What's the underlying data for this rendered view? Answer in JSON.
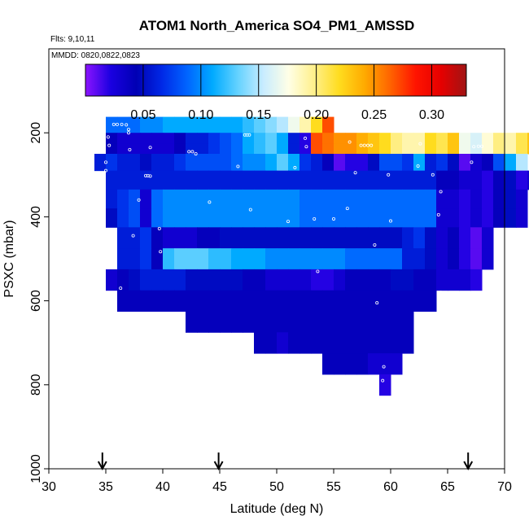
{
  "chart_data": {
    "type": "heatmap",
    "title": "ATOM1 North_America SO4_PM1_AMSSD",
    "flights_label": "Flts: 9,10,11",
    "mmdd_label": "MMDD: 0820,0822,0823",
    "xlabel": "Latitude (deg N)",
    "ylabel": "PSXC (mbar)",
    "xlim": [
      30,
      70
    ],
    "ylim": [
      1000,
      0
    ],
    "x_ticks": [
      "30",
      "35",
      "40",
      "45",
      "50",
      "55",
      "60",
      "65",
      "70"
    ],
    "y_ticks": [
      "200",
      "400",
      "600",
      "800",
      "1000"
    ],
    "colorbar": {
      "range": [
        0.0,
        0.33
      ],
      "ticks": [
        "0.05",
        "0.10",
        "0.15",
        "0.20",
        "0.25",
        "0.30"
      ],
      "colors": [
        "#8c14ff",
        "#1a00e0",
        "#0000b4",
        "#0028e6",
        "#0064ff",
        "#00aaff",
        "#64d2ff",
        "#c8ecff",
        "#ffffe6",
        "#fff08c",
        "#ffdc1e",
        "#ffaa00",
        "#ff6400",
        "#ff1400",
        "#e60000",
        "#a01414"
      ]
    },
    "arrow_latitudes": [
      34.7,
      44.9,
      66.8
    ],
    "colors": {
      "cell_fill": "#3c64e6"
    },
    "bands": [
      {
        "p_top": 162,
        "p_bot": 200,
        "x0": 35.0,
        "dx": 1.0,
        "values": [
          0.09,
          0.09,
          0.09,
          0.1,
          0.1,
          0.11,
          0.11,
          0.11,
          0.11,
          0.11,
          0.11,
          0.11,
          0.12,
          0.13,
          0.14,
          0.15,
          0.17,
          0.19,
          0.22,
          0.27
        ]
      },
      {
        "p_top": 200,
        "p_bot": 225,
        "x0": 35.0,
        "dx": 1.0,
        "values": [
          0.04,
          0.03,
          0.03,
          0.03,
          0.03,
          0.03,
          0.04,
          0.06,
          0.06,
          0.07,
          0.08,
          0.09,
          0.11,
          0.12,
          0.13,
          0.11,
          0.06,
          0.02,
          0.27,
          0.26,
          0.25,
          0.25,
          0.24,
          0.23,
          0.22,
          0.2,
          0.19,
          0.19,
          0.22,
          0.21,
          0.23,
          0.17,
          0.16,
          0.18,
          0.2,
          0.19,
          0.21,
          0.23,
          0.25,
          0.28
        ]
      },
      {
        "p_top": 225,
        "p_bot": 250,
        "x0": 35.0,
        "dx": 1.0,
        "values": [
          0.04,
          0.03,
          0.03,
          0.03,
          0.03,
          0.03,
          0.04,
          0.06,
          0.06,
          0.07,
          0.08,
          0.09,
          0.11,
          0.12,
          0.13,
          0.11,
          0.06,
          0.02,
          0.27,
          0.26,
          0.25,
          0.25,
          0.24,
          0.23,
          0.22,
          0.2,
          0.19,
          0.19,
          0.22,
          0.21,
          0.23,
          0.17,
          0.16,
          0.18,
          0.2,
          0.19,
          0.21,
          0.23,
          0.25,
          0.3
        ]
      },
      {
        "p_top": 250,
        "p_bot": 290,
        "x0": 34.0,
        "dx": 1.0,
        "values": [
          0.06,
          0.07,
          0.06,
          0.06,
          0.05,
          0.06,
          0.06,
          0.07,
          0.08,
          0.08,
          0.08,
          0.08,
          0.09,
          0.1,
          0.1,
          0.11,
          0.13,
          0.11,
          0.07,
          0.06,
          0.04,
          0.01,
          0.02,
          0.02,
          0.05,
          0.08,
          0.08,
          0.07,
          0.11,
          0.06,
          0.07,
          0.05,
          0.01,
          0.03,
          0.04,
          0.08,
          0.11,
          0.15
        ]
      },
      {
        "p_top": 290,
        "p_bot": 335,
        "x0": 35.0,
        "dx": 1.0,
        "values": [
          0.06,
          0.06,
          0.06,
          0.06,
          0.06,
          0.06,
          0.06,
          0.06,
          0.06,
          0.06,
          0.06,
          0.06,
          0.06,
          0.06,
          0.06,
          0.06,
          0.06,
          0.06,
          0.06,
          0.06,
          0.06,
          0.06,
          0.06,
          0.06,
          0.06,
          0.06,
          0.06,
          0.06,
          0.06,
          0.04,
          0.04,
          0.03,
          0.03,
          0.02,
          0.04,
          0.05,
          0.02,
          0.03
        ]
      },
      {
        "p_top": 335,
        "p_bot": 380,
        "x0": 35.0,
        "dx": 1.0,
        "values": [
          0.06,
          0.07,
          0.08,
          0.03,
          0.09,
          0.1,
          0.1,
          0.1,
          0.1,
          0.1,
          0.1,
          0.1,
          0.1,
          0.1,
          0.1,
          0.1,
          0.1,
          0.09,
          0.09,
          0.09,
          0.09,
          0.09,
          0.09,
          0.09,
          0.09,
          0.09,
          0.09,
          0.09,
          0.09,
          0.03,
          0.03,
          0.02,
          0.03,
          0.02,
          0.04,
          0.05,
          0.03
        ]
      },
      {
        "p_top": 380,
        "p_bot": 425,
        "x0": 35.0,
        "dx": 1.0,
        "values": [
          0.05,
          0.07,
          0.08,
          0.03,
          0.09,
          0.1,
          0.1,
          0.1,
          0.1,
          0.1,
          0.1,
          0.1,
          0.1,
          0.1,
          0.1,
          0.1,
          0.1,
          0.09,
          0.09,
          0.09,
          0.09,
          0.09,
          0.09,
          0.09,
          0.09,
          0.09,
          0.09,
          0.09,
          0.09,
          0.03,
          0.03,
          0.02,
          0.03,
          0.02,
          0.04,
          0.05,
          0.03
        ]
      },
      {
        "p_top": 425,
        "p_bot": 475,
        "x0": 36.0,
        "dx": 1.0,
        "values": [
          0.06,
          0.06,
          0.07,
          0.04,
          0.03,
          0.03,
          0.03,
          0.04,
          0.04,
          0.05,
          0.05,
          0.05,
          0.05,
          0.05,
          0.05,
          0.05,
          0.05,
          0.05,
          0.05,
          0.05,
          0.05,
          0.05,
          0.05,
          0.05,
          0.05,
          0.06,
          0.07,
          0.05,
          0.03,
          0.04,
          0.02,
          0.01,
          0.03
        ]
      },
      {
        "p_top": 475,
        "p_bot": 525,
        "x0": 36.0,
        "dx": 1.0,
        "values": [
          0.06,
          0.06,
          0.07,
          0.04,
          0.12,
          0.13,
          0.13,
          0.13,
          0.12,
          0.12,
          0.11,
          0.11,
          0.11,
          0.1,
          0.1,
          0.1,
          0.1,
          0.1,
          0.1,
          0.1,
          0.09,
          0.09,
          0.09,
          0.09,
          0.09,
          0.06,
          0.06,
          0.05,
          0.03,
          0.04,
          0.02,
          0.01,
          0.03
        ]
      },
      {
        "p_top": 525,
        "p_bot": 575,
        "x0": 35.0,
        "dx": 1.0,
        "values": [
          0.03,
          0.04,
          0.05,
          0.06,
          0.06,
          0.06,
          0.06,
          0.05,
          0.05,
          0.05,
          0.05,
          0.05,
          0.04,
          0.04,
          0.03,
          0.03,
          0.03,
          0.03,
          0.02,
          0.02,
          0.03,
          0.04,
          0.04,
          0.04,
          0.04,
          0.05,
          0.05,
          0.04,
          0.04,
          0.03,
          0.03,
          0.03,
          0.02
        ]
      },
      {
        "p_top": 575,
        "p_bot": 625,
        "x0": 36.0,
        "dx": 1.0,
        "values": [
          0.04,
          0.04,
          0.04,
          0.04,
          0.04,
          0.04,
          0.04,
          0.04,
          0.04,
          0.04,
          0.04,
          0.04,
          0.04,
          0.04,
          0.04,
          0.04,
          0.04,
          0.04,
          0.04,
          0.04,
          0.04,
          0.04,
          0.04,
          0.04,
          0.04,
          0.04,
          0.04,
          0.04
        ]
      },
      {
        "p_top": 625,
        "p_bot": 675,
        "x0": 42.0,
        "dx": 1.0,
        "values": [
          0.04,
          0.04,
          0.04,
          0.04,
          0.04,
          0.04,
          0.04,
          0.04,
          0.04,
          0.04,
          0.04,
          0.04,
          0.04,
          0.04,
          0.04,
          0.04,
          0.04,
          0.04,
          0.04,
          0.04
        ]
      },
      {
        "p_top": 675,
        "p_bot": 725,
        "x0": 48.0,
        "dx": 1.0,
        "values": [
          0.04,
          0.04,
          0.03,
          0.04,
          0.04,
          0.04,
          0.04,
          0.04,
          0.04,
          0.04,
          0.04,
          0.04,
          0.04,
          0.04
        ]
      },
      {
        "p_top": 725,
        "p_bot": 775,
        "x0": 54.0,
        "dx": 1.0,
        "values": [
          0.04,
          0.04,
          0.04,
          0.04,
          0.03,
          0.03,
          0.03
        ]
      },
      {
        "p_top": 775,
        "p_bot": 825,
        "x0": 59.0,
        "dx": 1.0,
        "values": [
          0.02
        ]
      }
    ],
    "obs_points": [
      {
        "lat": 35.7,
        "p": 180
      },
      {
        "lat": 36.0,
        "p": 180
      },
      {
        "lat": 36.4,
        "p": 180
      },
      {
        "lat": 36.8,
        "p": 181
      },
      {
        "lat": 37.0,
        "p": 192
      },
      {
        "lat": 37.0,
        "p": 200
      },
      {
        "lat": 35.2,
        "p": 210
      },
      {
        "lat": 35.3,
        "p": 230
      },
      {
        "lat": 37.1,
        "p": 240
      },
      {
        "lat": 38.9,
        "p": 235
      },
      {
        "lat": 42.3,
        "p": 245
      },
      {
        "lat": 42.6,
        "p": 245
      },
      {
        "lat": 42.9,
        "p": 250
      },
      {
        "lat": 47.2,
        "p": 205
      },
      {
        "lat": 47.4,
        "p": 205
      },
      {
        "lat": 47.6,
        "p": 205
      },
      {
        "lat": 52.5,
        "p": 213
      },
      {
        "lat": 52.6,
        "p": 233
      },
      {
        "lat": 56.4,
        "p": 222
      },
      {
        "lat": 62.6,
        "p": 226
      },
      {
        "lat": 67.3,
        "p": 233
      },
      {
        "lat": 67.7,
        "p": 232
      },
      {
        "lat": 68.0,
        "p": 232
      },
      {
        "lat": 57.4,
        "p": 230
      },
      {
        "lat": 57.7,
        "p": 230
      },
      {
        "lat": 58.0,
        "p": 230
      },
      {
        "lat": 58.3,
        "p": 230
      },
      {
        "lat": 35.0,
        "p": 270
      },
      {
        "lat": 35.0,
        "p": 290
      },
      {
        "lat": 38.5,
        "p": 302
      },
      {
        "lat": 38.7,
        "p": 302
      },
      {
        "lat": 38.9,
        "p": 303
      },
      {
        "lat": 46.6,
        "p": 280
      },
      {
        "lat": 51.6,
        "p": 283
      },
      {
        "lat": 56.9,
        "p": 295
      },
      {
        "lat": 59.8,
        "p": 300
      },
      {
        "lat": 62.4,
        "p": 279
      },
      {
        "lat": 63.7,
        "p": 300
      },
      {
        "lat": 64.4,
        "p": 340
      },
      {
        "lat": 67.1,
        "p": 270
      },
      {
        "lat": 37.9,
        "p": 360
      },
      {
        "lat": 44.1,
        "p": 365
      },
      {
        "lat": 47.7,
        "p": 383
      },
      {
        "lat": 51.0,
        "p": 411
      },
      {
        "lat": 53.3,
        "p": 405
      },
      {
        "lat": 55.0,
        "p": 405
      },
      {
        "lat": 56.2,
        "p": 380
      },
      {
        "lat": 60.0,
        "p": 410
      },
      {
        "lat": 64.2,
        "p": 395
      },
      {
        "lat": 39.7,
        "p": 428
      },
      {
        "lat": 37.4,
        "p": 445
      },
      {
        "lat": 39.8,
        "p": 483
      },
      {
        "lat": 58.6,
        "p": 467
      },
      {
        "lat": 53.6,
        "p": 530
      },
      {
        "lat": 36.3,
        "p": 570
      },
      {
        "lat": 64.4,
        "p": 580
      },
      {
        "lat": 58.8,
        "p": 605
      },
      {
        "lat": 59.4,
        "p": 757
      },
      {
        "lat": 59.3,
        "p": 790
      }
    ]
  }
}
